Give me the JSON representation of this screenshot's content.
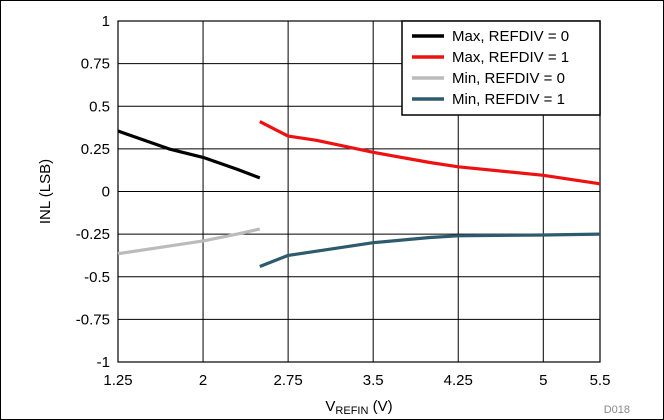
{
  "chart_data": {
    "type": "line",
    "xlabel_main": "V",
    "xlabel_sub": "REFIN",
    "xlabel_unit": " (V)",
    "ylabel": "INL (LSB)",
    "xlim": [
      1.25,
      5.5
    ],
    "ylim": [
      -1,
      1
    ],
    "x_ticks": [
      1.25,
      2,
      2.75,
      3.5,
      4.25,
      5,
      5.5
    ],
    "x_tick_labels": [
      "1.25",
      "2",
      "2.75",
      "3.5",
      "4.25",
      "5",
      "5.5"
    ],
    "y_ticks": [
      1,
      0.75,
      0.5,
      0.25,
      0,
      -0.25,
      -0.5,
      -0.75,
      -1
    ],
    "y_tick_labels": [
      "1",
      "0.75",
      "0.5",
      "0.25",
      "0",
      "-0.25",
      "-0.5",
      "-0.75",
      "-1"
    ],
    "grid": true,
    "legend_position": "top-right",
    "series": [
      {
        "name": "Max, REFDIV = 0",
        "color": "#000000",
        "x": [
          1.25,
          1.7,
          2.0,
          2.3,
          2.5
        ],
        "y": [
          0.355,
          0.25,
          0.2,
          0.13,
          0.08
        ]
      },
      {
        "name": "Max, REFDIV = 1",
        "color": "#ee1111",
        "x": [
          2.5,
          2.75,
          3.0,
          3.5,
          4.0,
          4.25,
          5.0,
          5.5
        ],
        "y": [
          0.41,
          0.325,
          0.3,
          0.23,
          0.17,
          0.145,
          0.095,
          0.045
        ]
      },
      {
        "name": "Min, REFDIV = 0",
        "color": "#bbbbbb",
        "x": [
          1.25,
          1.7,
          2.0,
          2.3,
          2.5
        ],
        "y": [
          -0.365,
          -0.32,
          -0.29,
          -0.25,
          -0.22
        ]
      },
      {
        "name": "Min, REFDIV = 1",
        "color": "#2e5a6e",
        "x": [
          2.5,
          2.75,
          3.0,
          3.5,
          4.0,
          4.25,
          5.0,
          5.5
        ],
        "y": [
          -0.44,
          -0.375,
          -0.35,
          -0.3,
          -0.27,
          -0.26,
          -0.255,
          -0.25
        ]
      }
    ],
    "annotation": "D018"
  }
}
